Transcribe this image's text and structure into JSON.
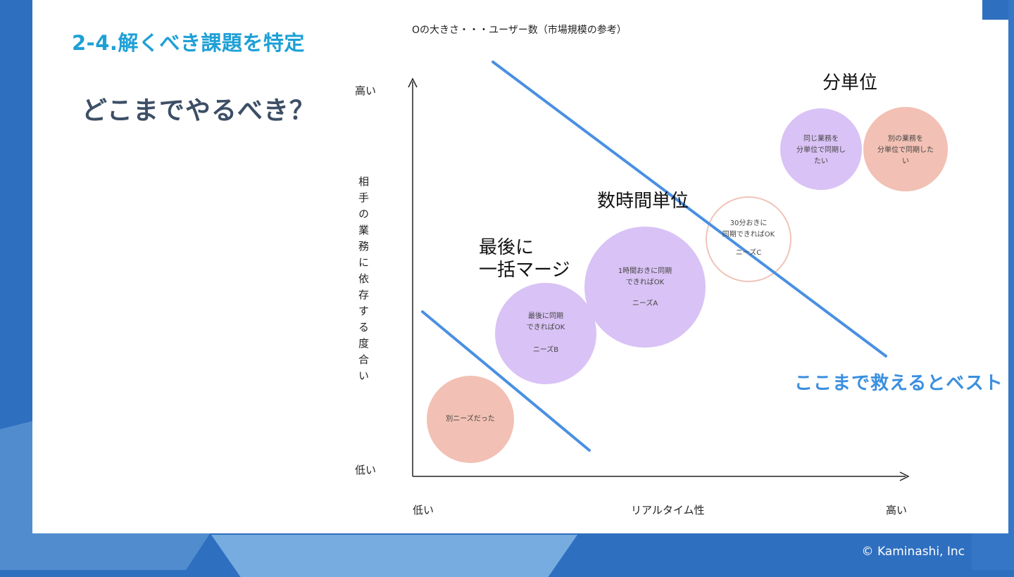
{
  "slide": {
    "title": "2-4.解くべき課題を特定",
    "question": "どこまでやるべき？",
    "legend": "Oの大きさ・・・ユーザー数（市場規模の参考）",
    "copyright": "© Kaminashi, Inc"
  },
  "axes": {
    "y_high": "高い",
    "y_low": "低い",
    "y_label": "相手の業務に依存する度合い",
    "x_low": "低い",
    "x_label": "リアルタイム性",
    "x_high": "高い"
  },
  "categories": {
    "batch_line1": "最後に",
    "batch_line2": "一括マージ",
    "hours": "数時間単位",
    "minutes": "分単位"
  },
  "bubbles": {
    "other_needs": "別ニーズだった",
    "needs_b_line1": "最後に同期",
    "needs_b_line2": "できればOK",
    "needs_b_name": "ニーズB",
    "needs_a_line1": "1時間おきに同期",
    "needs_a_line2": "できればOK",
    "needs_a_name": "ニーズA",
    "needs_c_line1": "30分おきに",
    "needs_c_line2": "同期できればOK",
    "needs_c_name": "ニーズC",
    "same_work_line1": "同じ業務を",
    "same_work_line2": "分単位で同期し",
    "same_work_line3": "たい",
    "other_work_line1": "別の業務を",
    "other_work_line2": "分単位で同期した",
    "other_work_line3": "い"
  },
  "annotation": {
    "best": "ここまで救えるとベスト"
  },
  "colors": {
    "title": "#1ea0d6",
    "line": "#4a90e2",
    "purple": "#d9c2f5",
    "pink": "#f2c0b4",
    "background": "#2f6fbf"
  }
}
